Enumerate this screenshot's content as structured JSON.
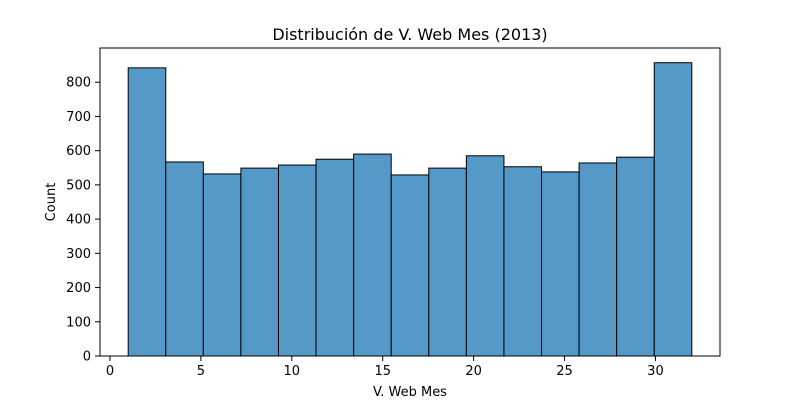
{
  "chart_data": {
    "type": "bar",
    "title": "Distribución de V. Web Mes (2013)",
    "xlabel": "V. Web Mes",
    "ylabel": "Count",
    "xlim": [
      -0.55,
      33.55
    ],
    "ylim": [
      0,
      900
    ],
    "xticks": [
      0,
      5,
      10,
      15,
      20,
      25,
      30
    ],
    "yticks": [
      0,
      100,
      200,
      300,
      400,
      500,
      600,
      700,
      800
    ],
    "grid": false,
    "bin_edges": [
      1.0,
      3.0667,
      5.1333,
      7.2,
      9.2667,
      11.3333,
      13.4,
      15.4667,
      17.5333,
      19.6,
      21.6667,
      23.7333,
      25.8,
      27.8667,
      29.9333,
      32.0
    ],
    "values": [
      842,
      567,
      532,
      549,
      558,
      575,
      590,
      529,
      549,
      585,
      553,
      538,
      564,
      581,
      857
    ],
    "bar_color": "#5499c7",
    "edge_color": "#000000"
  }
}
